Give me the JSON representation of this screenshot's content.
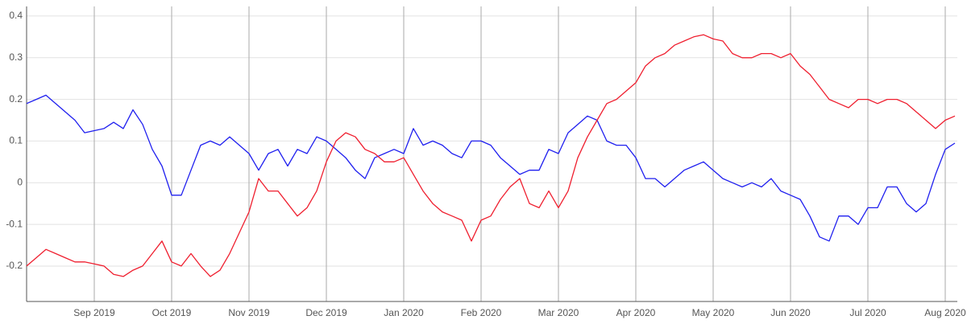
{
  "chart_data": {
    "type": "line",
    "categories": [
      null,
      null,
      null,
      null,
      null,
      null,
      null,
      "Sep 2019",
      null,
      null,
      null,
      null,
      null,
      null,
      null,
      "Oct 2019",
      null,
      null,
      null,
      null,
      null,
      null,
      null,
      "Nov 2019",
      null,
      null,
      null,
      null,
      null,
      null,
      null,
      "Dec 2019",
      null,
      null,
      null,
      null,
      null,
      null,
      null,
      "Jan 2020",
      null,
      null,
      null,
      null,
      null,
      null,
      null,
      "Feb 2020",
      null,
      null,
      null,
      null,
      null,
      null,
      null,
      "Mar 2020",
      null,
      null,
      null,
      null,
      null,
      null,
      null,
      "Apr 2020",
      null,
      null,
      null,
      null,
      null,
      null,
      null,
      "May 2020",
      null,
      null,
      null,
      null,
      null,
      null,
      null,
      "Jun 2020",
      null,
      null,
      null,
      null,
      null,
      null,
      null,
      "Jul 2020",
      null,
      null,
      null,
      null,
      null,
      null,
      null,
      "Aug 2020",
      null
    ],
    "series": [
      {
        "color": "#1f1fef",
        "values": [
          0.19,
          0.2,
          0.21,
          0.19,
          0.17,
          0.15,
          0.12,
          0.125,
          0.13,
          0.145,
          0.13,
          0.175,
          0.14,
          0.08,
          0.04,
          -0.03,
          -0.03,
          0.03,
          0.09,
          0.1,
          0.09,
          0.11,
          0.09,
          0.07,
          0.03,
          0.07,
          0.08,
          0.04,
          0.08,
          0.07,
          0.11,
          0.1,
          0.08,
          0.06,
          0.03,
          0.01,
          0.06,
          0.07,
          0.08,
          0.07,
          0.13,
          0.09,
          0.1,
          0.09,
          0.07,
          0.06,
          0.1,
          0.1,
          0.09,
          0.06,
          0.04,
          0.02,
          0.03,
          0.03,
          0.08,
          0.07,
          0.12,
          0.14,
          0.16,
          0.15,
          0.1,
          0.09,
          0.09,
          0.06,
          0.01,
          0.01,
          -0.01,
          0.01,
          0.03,
          0.04,
          0.05,
          0.03,
          0.01,
          0.0,
          -0.01,
          0.0,
          -0.01,
          0.01,
          -0.02,
          -0.03,
          -0.04,
          -0.08,
          -0.13,
          -0.14,
          -0.08,
          -0.08,
          -0.1,
          -0.06,
          -0.06,
          -0.01,
          -0.01,
          -0.05,
          -0.07,
          -0.05,
          0.02,
          0.08,
          0.095
        ]
      },
      {
        "color": "#ef1f2f",
        "values": [
          -0.2,
          -0.18,
          -0.16,
          -0.17,
          -0.18,
          -0.19,
          -0.19,
          -0.195,
          -0.2,
          -0.22,
          -0.225,
          -0.21,
          -0.2,
          -0.17,
          -0.14,
          -0.19,
          -0.2,
          -0.17,
          -0.2,
          -0.225,
          -0.21,
          -0.17,
          -0.12,
          -0.07,
          0.01,
          -0.02,
          -0.02,
          -0.05,
          -0.08,
          -0.06,
          -0.02,
          0.05,
          0.1,
          0.12,
          0.11,
          0.08,
          0.07,
          0.05,
          0.05,
          0.06,
          0.02,
          -0.02,
          -0.05,
          -0.07,
          -0.08,
          -0.09,
          -0.14,
          -0.09,
          -0.08,
          -0.04,
          -0.01,
          0.01,
          -0.05,
          -0.06,
          -0.02,
          -0.06,
          -0.02,
          0.06,
          0.11,
          0.15,
          0.19,
          0.2,
          0.22,
          0.24,
          0.28,
          0.3,
          0.31,
          0.33,
          0.34,
          0.35,
          0.355,
          0.345,
          0.34,
          0.31,
          0.3,
          0.3,
          0.31,
          0.31,
          0.3,
          0.31,
          0.28,
          0.26,
          0.23,
          0.2,
          0.19,
          0.18,
          0.2,
          0.2,
          0.19,
          0.2,
          0.2,
          0.19,
          0.17,
          0.15,
          0.13,
          0.15,
          0.16
        ]
      }
    ],
    "ylim": [
      -0.285,
      0.423
    ],
    "yticks": [
      -0.2,
      -0.1,
      0,
      0.1,
      0.2,
      0.3,
      0.4
    ],
    "grid": true
  }
}
